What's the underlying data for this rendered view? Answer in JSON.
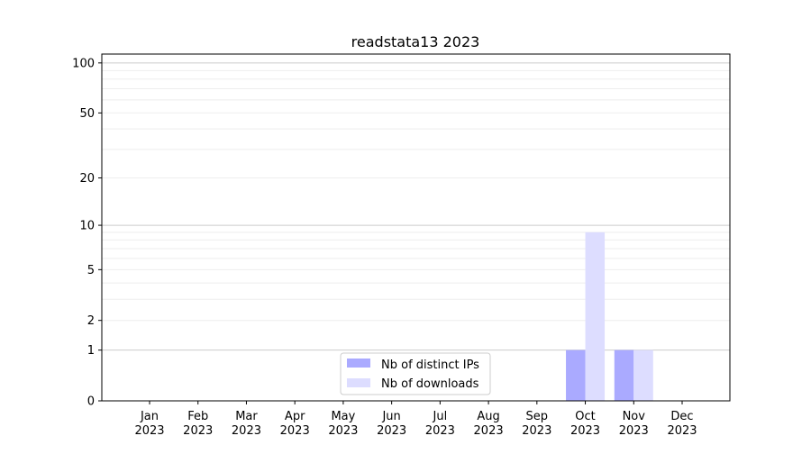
{
  "chart_data": {
    "type": "bar",
    "title": "readstata13 2023",
    "xlabel": "",
    "ylabel": "",
    "yscale": "log10(1+y)",
    "ylim": [
      0,
      113
    ],
    "yticks": [
      0,
      1,
      2,
      5,
      10,
      20,
      50,
      100
    ],
    "grid": true,
    "legend_position": "lower-center",
    "categories": [
      "Jan\n2023",
      "Feb\n2023",
      "Mar\n2023",
      "Apr\n2023",
      "May\n2023",
      "Jun\n2023",
      "Jul\n2023",
      "Aug\n2023",
      "Sep\n2023",
      "Oct\n2023",
      "Nov\n2023",
      "Dec\n2023"
    ],
    "series": [
      {
        "name": "Nb of distinct IPs",
        "color": "#aaaaff",
        "values": [
          0,
          0,
          0,
          0,
          0,
          0,
          0,
          0,
          0,
          1,
          1,
          0
        ]
      },
      {
        "name": "Nb of downloads",
        "color": "#ddddff",
        "values": [
          0,
          0,
          0,
          0,
          0,
          0,
          0,
          0,
          0,
          9,
          1,
          0
        ]
      }
    ]
  }
}
